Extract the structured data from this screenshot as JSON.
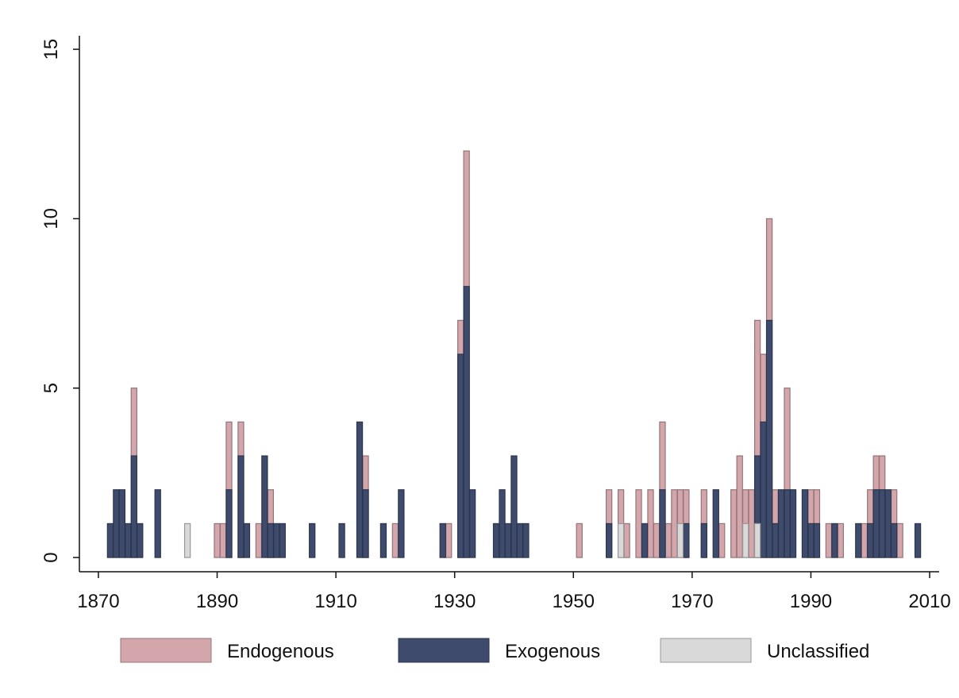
{
  "chart_data": {
    "type": "bar",
    "xlim": [
      1866.8,
      2011.6
    ],
    "ylim": [
      -0.42,
      15.4
    ],
    "xticks": [
      1870,
      1890,
      1910,
      1930,
      1950,
      1970,
      1990,
      2010
    ],
    "yticks": [
      0,
      5,
      10,
      15
    ],
    "series": [
      {
        "name": "Endogenous",
        "color": "#d3a6ac",
        "x": [
          1876,
          1890,
          1891,
          1892,
          1894,
          1897,
          1899,
          1915,
          1920,
          1929,
          1931,
          1932,
          1951,
          1956,
          1958,
          1959,
          1961,
          1963,
          1964,
          1965,
          1966,
          1967,
          1968,
          1969,
          1972,
          1975,
          1977,
          1978,
          1979,
          1980,
          1981,
          1982,
          1983,
          1984,
          1986,
          1990,
          1991,
          1993,
          1995,
          1999,
          2000,
          2001,
          2002,
          2004,
          2005
        ],
        "values": [
          5,
          1,
          1,
          4,
          4,
          1,
          2,
          3,
          1,
          1,
          7,
          12,
          1,
          2,
          2,
          1,
          2,
          2,
          1,
          4,
          1,
          2,
          2,
          2,
          2,
          1,
          2,
          3,
          2,
          2,
          7,
          6,
          10,
          2,
          5,
          2,
          2,
          1,
          1,
          1,
          2,
          3,
          3,
          2,
          1
        ]
      },
      {
        "name": "Exogenous",
        "color": "#3e4b6d",
        "x": [
          1872,
          1873,
          1874,
          1875,
          1876,
          1877,
          1880,
          1892,
          1894,
          1895,
          1898,
          1899,
          1900,
          1901,
          1906,
          1911,
          1914,
          1915,
          1918,
          1921,
          1928,
          1931,
          1932,
          1933,
          1937,
          1938,
          1939,
          1940,
          1941,
          1942,
          1956,
          1962,
          1965,
          1969,
          1972,
          1974,
          1981,
          1982,
          1983,
          1984,
          1985,
          1986,
          1987,
          1989,
          1990,
          1991,
          1994,
          1998,
          2000,
          2001,
          2002,
          2003,
          2004,
          2008
        ],
        "values": [
          1,
          2,
          2,
          1,
          3,
          1,
          2,
          2,
          3,
          1,
          3,
          1,
          1,
          1,
          1,
          1,
          4,
          2,
          1,
          2,
          1,
          6,
          8,
          2,
          1,
          2,
          1,
          3,
          1,
          1,
          1,
          1,
          2,
          1,
          1,
          2,
          3,
          4,
          7,
          1,
          2,
          2,
          2,
          2,
          1,
          1,
          1,
          1,
          1,
          2,
          2,
          2,
          1,
          1
        ]
      },
      {
        "name": "Unclassified",
        "color": "#d9d9d9",
        "x": [
          1885,
          1958,
          1968,
          1979,
          1981
        ],
        "values": [
          1,
          1,
          1,
          1,
          1
        ]
      }
    ]
  }
}
